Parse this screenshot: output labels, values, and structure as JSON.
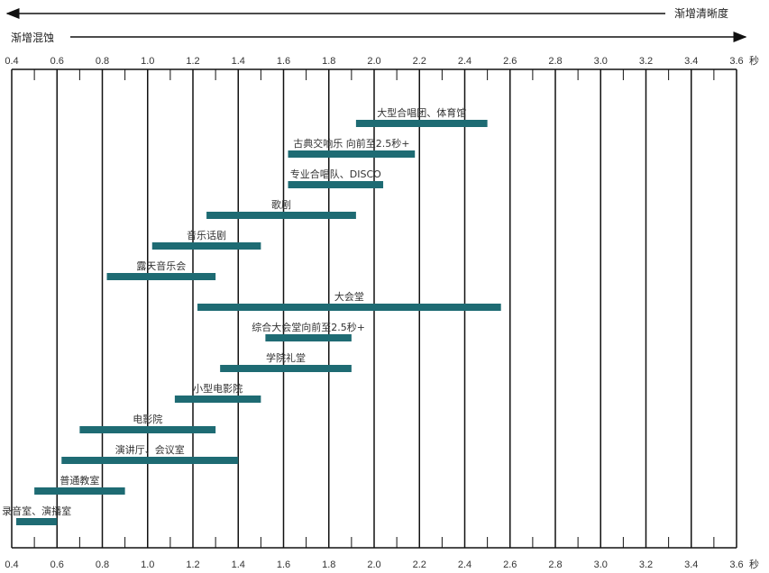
{
  "header": {
    "clarity_label": "渐增清晰度",
    "turbidity_label": "渐增混蚀"
  },
  "chart_data": {
    "type": "bar",
    "orientation": "horizontal-range",
    "xlim": [
      0.4,
      3.6
    ],
    "x_ticks": [
      "0.4",
      "0.6",
      "0.8",
      "1.0",
      "1.2",
      "1.4",
      "1.6",
      "1.8",
      "2.0",
      "2.2",
      "2.4",
      "2.6",
      "2.8",
      "3.0",
      "3.2",
      "3.4",
      "3.6"
    ],
    "x_unit": "秒",
    "grid": true,
    "bar_color": "#1e6b73",
    "series": [
      {
        "label": "大型合唱团、体育馆",
        "start": 1.92,
        "end": 2.5
      },
      {
        "label": "古典交响乐 向前至2.5秒+",
        "start": 1.62,
        "end": 2.18
      },
      {
        "label": "专业合唱队、DISCO",
        "start": 1.62,
        "end": 2.04
      },
      {
        "label": "歌剧",
        "start": 1.26,
        "end": 1.92
      },
      {
        "label": "音乐话剧",
        "start": 1.02,
        "end": 1.5
      },
      {
        "label": "露天音乐会",
        "start": 0.82,
        "end": 1.3
      },
      {
        "label": "大会堂",
        "start": 1.22,
        "end": 2.56
      },
      {
        "label": "综合大会堂向前至2.5秒+",
        "start": 1.52,
        "end": 1.9
      },
      {
        "label": "学院礼堂",
        "start": 1.32,
        "end": 1.9
      },
      {
        "label": "小型电影院",
        "start": 1.12,
        "end": 1.5
      },
      {
        "label": "电影院",
        "start": 0.7,
        "end": 1.3
      },
      {
        "label": "演讲厅、会议室",
        "start": 0.62,
        "end": 1.4
      },
      {
        "label": "普通教室",
        "start": 0.5,
        "end": 0.9
      },
      {
        "label": "录音室、演播室",
        "start": 0.42,
        "end": 0.6
      }
    ]
  }
}
